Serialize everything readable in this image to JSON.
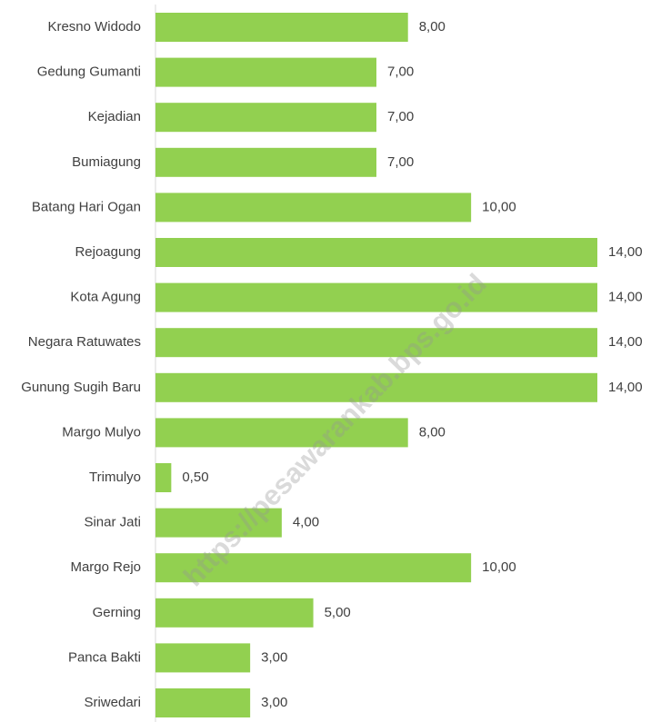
{
  "chart_data": {
    "type": "barh",
    "categories": [
      "Kresno Widodo",
      "Gedung Gumanti",
      "Kejadian",
      "Bumiagung",
      "Batang Hari Ogan",
      "Rejoagung",
      "Kota Agung",
      "Negara Ratuwates",
      "Gunung Sugih Baru",
      "Margo Mulyo",
      "Trimulyo",
      "Sinar Jati",
      "Margo Rejo",
      "Gerning",
      "Panca Bakti",
      "Sriwedari"
    ],
    "values": [
      8,
      7,
      7,
      7,
      10,
      14,
      14,
      14,
      14,
      8,
      0.5,
      4,
      10,
      5,
      3,
      3
    ],
    "value_labels": [
      "8,00",
      "7,00",
      "7,00",
      "7,00",
      "10,00",
      "14,00",
      "14,00",
      "14,00",
      "14,00",
      "8,00",
      "0,50",
      "4,00",
      "10,00",
      "5,00",
      "3,00",
      "3,00"
    ],
    "color": "#92d050",
    "watermark": "https://pesawarankab.bps.go.id"
  }
}
